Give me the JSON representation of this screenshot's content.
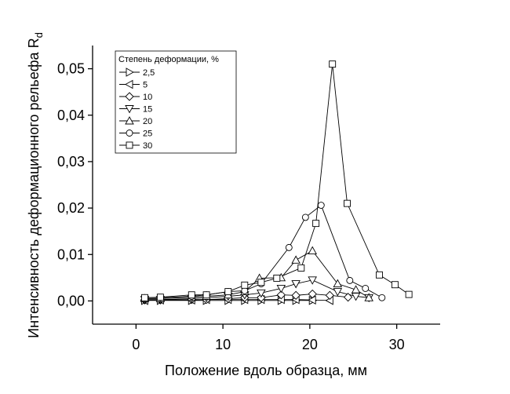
{
  "chart_data": {
    "type": "line",
    "x_label": "Положение вдоль образца, мм",
    "y_label": "Интенсивность деформационного рельефа R",
    "y_label_sub": "d",
    "legend_title": "Степень деформации, %",
    "legend": "upper-left",
    "xlim": [
      -5,
      35
    ],
    "xticks": [
      0,
      10,
      20,
      30
    ],
    "ylim": [
      -0.005,
      0.055
    ],
    "yticks": [
      {
        "value": 0,
        "label": "0,00"
      },
      {
        "value": 0.01,
        "label": "0,01"
      },
      {
        "value": 0.02,
        "label": "0,02"
      },
      {
        "value": 0.03,
        "label": "0,03"
      },
      {
        "value": 0.04,
        "label": "0,04"
      },
      {
        "value": 0.05,
        "label": "0,05"
      }
    ],
    "series": [
      {
        "name": "2,5",
        "marker": "triangle-right",
        "color": "#000000",
        "x": [
          1,
          2.8,
          6.4,
          8.1,
          10.6,
          12.5,
          14.4,
          16.7,
          18.4,
          20.3
        ],
        "values": [
          0.0001,
          0.0001,
          0.0001,
          0.0001,
          0.0001,
          0.0001,
          0.0001,
          0.0001,
          0.0001,
          0.0001
        ]
      },
      {
        "name": "5",
        "marker": "triangle-left",
        "color": "#000000",
        "x": [
          1,
          2.8,
          6.4,
          8.1,
          10.6,
          12.5,
          14.4,
          16.7,
          18.4,
          20.3,
          22.3
        ],
        "values": [
          0.0001,
          0.0002,
          0.0002,
          0.0003,
          0.0003,
          0.0003,
          0.0003,
          0.0003,
          0.0003,
          0.0002,
          0.0001
        ]
      },
      {
        "name": "10",
        "marker": "diamond",
        "color": "#000000",
        "x": [
          1,
          2.8,
          6.4,
          8.1,
          10.6,
          12.5,
          14.4,
          16.7,
          18.4,
          20.3,
          22.3,
          24.4
        ],
        "values": [
          0.0002,
          0.0002,
          0.0003,
          0.0003,
          0.0005,
          0.0007,
          0.0007,
          0.0013,
          0.0012,
          0.0015,
          0.0012,
          0.0008
        ]
      },
      {
        "name": "15",
        "marker": "triangle-down",
        "color": "#000000",
        "x": [
          1,
          2.8,
          6.4,
          8.1,
          10.6,
          12.5,
          14.4,
          16.7,
          18.4,
          20.3,
          23.2,
          25.3,
          26.8
        ],
        "values": [
          0.0003,
          0.0003,
          0.0005,
          0.0007,
          0.001,
          0.0013,
          0.0017,
          0.0027,
          0.0037,
          0.0045,
          0.002,
          0.001,
          0.0007
        ]
      },
      {
        "name": "20",
        "marker": "triangle-up",
        "color": "#000000",
        "x": [
          1,
          2.8,
          6.4,
          8.1,
          10.6,
          12.5,
          14.2,
          16.7,
          18.4,
          20.3,
          23.2,
          25.3,
          26.8
        ],
        "values": [
          0.0005,
          0.0005,
          0.0008,
          0.001,
          0.0013,
          0.002,
          0.0049,
          0.005,
          0.0088,
          0.0108,
          0.0037,
          0.0024,
          0.0007
        ]
      },
      {
        "name": "25",
        "marker": "circle",
        "color": "#000000",
        "x": [
          1,
          2.8,
          6.4,
          8.1,
          10.6,
          12.5,
          14.4,
          17.6,
          19.5,
          21.3,
          24.6,
          26.4,
          28.3
        ],
        "values": [
          0.0007,
          0.0007,
          0.001,
          0.0013,
          0.002,
          0.0022,
          0.0037,
          0.0115,
          0.018,
          0.0206,
          0.0044,
          0.0027,
          0.0007
        ]
      },
      {
        "name": "30",
        "marker": "square",
        "color": "#000000",
        "x": [
          1,
          2.8,
          6.4,
          8.1,
          10.6,
          12.5,
          14.4,
          16.2,
          19,
          20.7,
          22.6,
          24.3,
          28,
          29.8,
          31.4
        ],
        "values": [
          0.0007,
          0.0008,
          0.0013,
          0.0013,
          0.002,
          0.0034,
          0.004,
          0.0049,
          0.0071,
          0.0167,
          0.051,
          0.021,
          0.0056,
          0.0035,
          0.0014
        ]
      }
    ]
  }
}
